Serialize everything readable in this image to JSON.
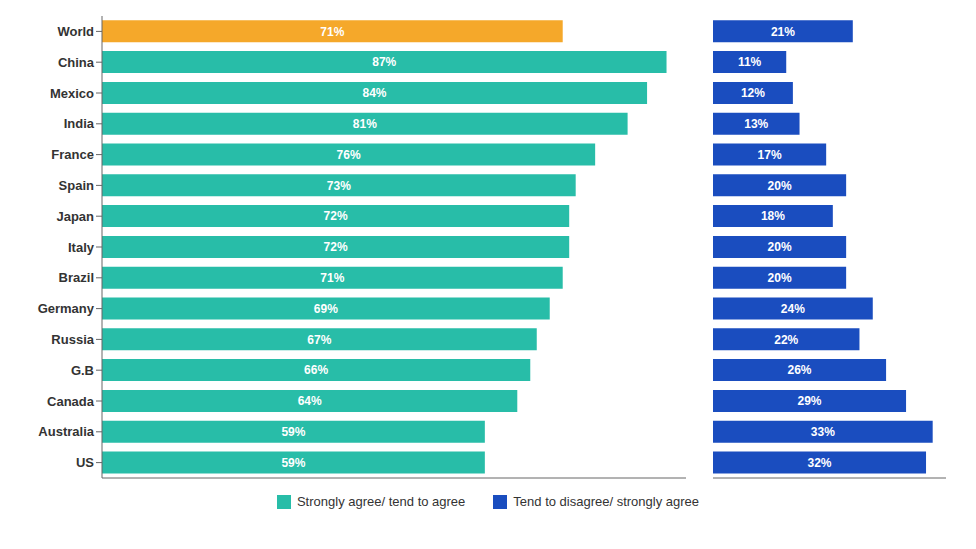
{
  "chart_data": [
    {
      "type": "bar",
      "orientation": "horizontal",
      "categories": [
        "World",
        "China",
        "Mexico",
        "India",
        "France",
        "Spain",
        "Japan",
        "Italy",
        "Brazil",
        "Germany",
        "Russia",
        "G.B",
        "Canada",
        "Australia",
        "US"
      ],
      "series": [
        {
          "name": "Strongly agree/ tend to agree",
          "color": "#28BDA8",
          "colors": [
            "#F5A82A",
            "#28BDA8",
            "#28BDA8",
            "#28BDA8",
            "#28BDA8",
            "#28BDA8",
            "#28BDA8",
            "#28BDA8",
            "#28BDA8",
            "#28BDA8",
            "#28BDA8",
            "#28BDA8",
            "#28BDA8",
            "#28BDA8",
            "#28BDA8"
          ],
          "values": [
            71,
            87,
            84,
            81,
            76,
            73,
            72,
            72,
            71,
            69,
            67,
            66,
            64,
            59,
            59
          ],
          "value_labels": [
            "71%",
            "87%",
            "84%",
            "81%",
            "76%",
            "73%",
            "72%",
            "72%",
            "71%",
            "69%",
            "67%",
            "66%",
            "64%",
            "59%",
            "59%"
          ]
        }
      ],
      "xlim": [
        0,
        90
      ],
      "data_labels": true,
      "tick_labels": "y",
      "grid": false,
      "legend": "bottom"
    },
    {
      "type": "bar",
      "orientation": "horizontal",
      "categories": [
        "World",
        "China",
        "Mexico",
        "India",
        "France",
        "Spain",
        "Japan",
        "Italy",
        "Brazil",
        "Germany",
        "Russia",
        "G.B",
        "Canada",
        "Australia",
        "US"
      ],
      "series": [
        {
          "name": "Tend to disagree/ strongly agree",
          "color": "#1A4DBF",
          "values": [
            21,
            11,
            12,
            13,
            17,
            20,
            18,
            20,
            20,
            24,
            22,
            26,
            29,
            33,
            32
          ],
          "value_labels": [
            "21%",
            "11%",
            "12%",
            "13%",
            "17%",
            "20%",
            "18%",
            "20%",
            "20%",
            "24%",
            "22%",
            "26%",
            "29%",
            "33%",
            "32%"
          ]
        }
      ],
      "xlim": [
        0,
        35
      ],
      "data_labels": true,
      "tick_labels": false,
      "grid": false,
      "legend": "bottom"
    }
  ]
}
